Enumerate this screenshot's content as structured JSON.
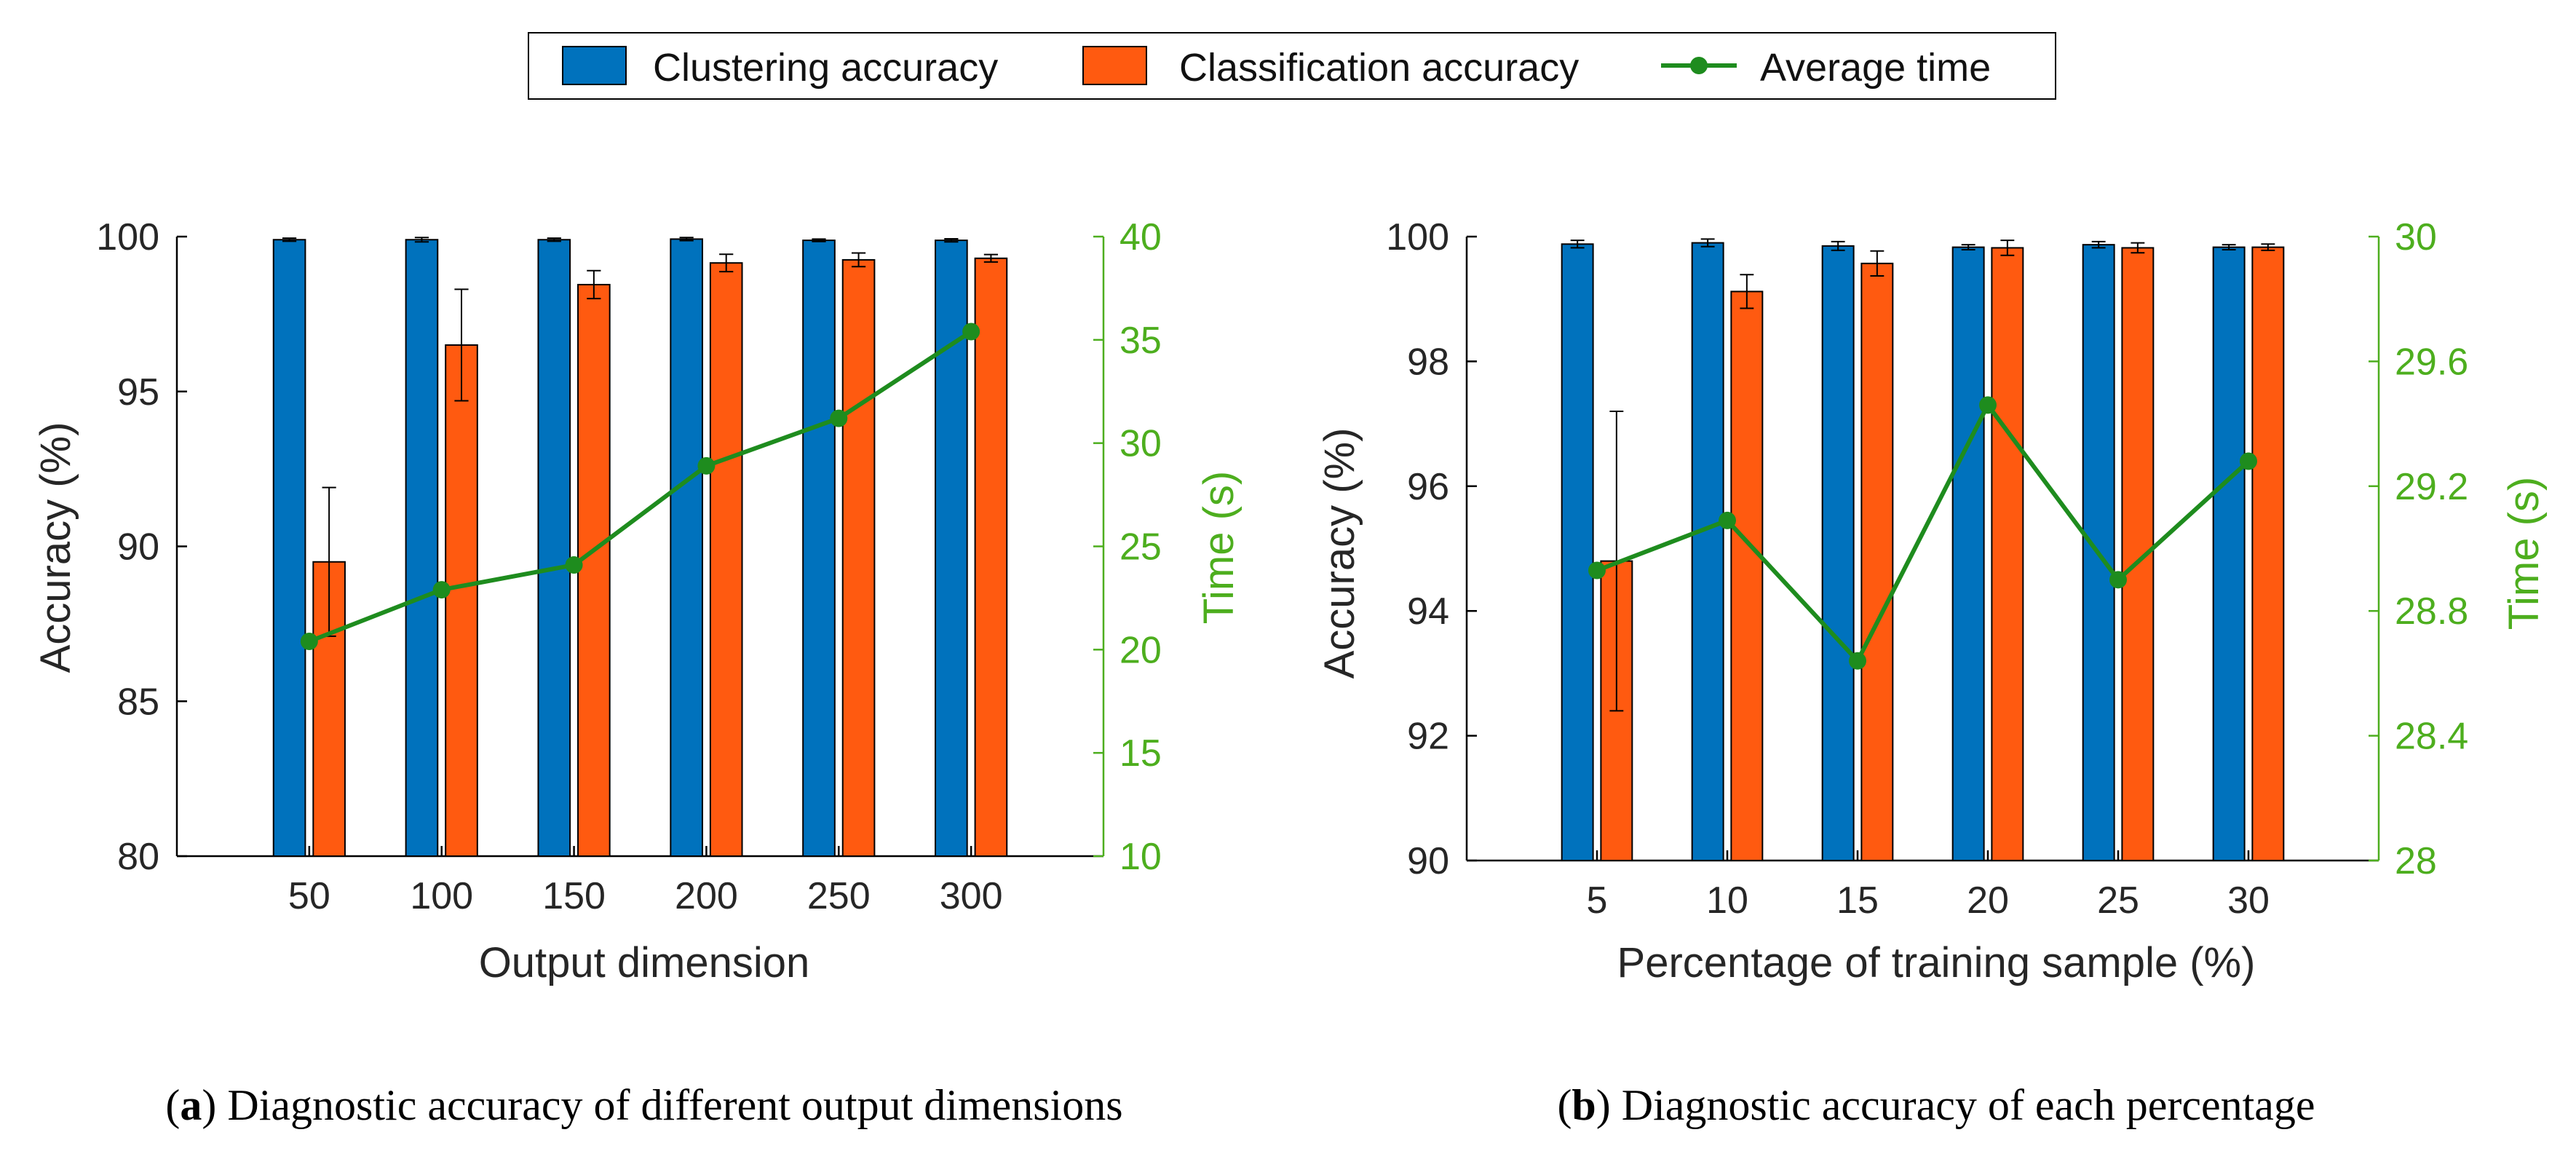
{
  "legend": {
    "items": [
      {
        "label": "Clustering accuracy",
        "kind": "bar",
        "color": "#0072BD"
      },
      {
        "label": "Classification accuracy",
        "kind": "bar",
        "color": "#FF5A10"
      },
      {
        "label": "Average time",
        "kind": "line",
        "color": "#1E8C1E"
      }
    ]
  },
  "chart_data": [
    {
      "type": "bar",
      "panel": "a",
      "categories": [
        "50",
        "100",
        "150",
        "200",
        "250",
        "300"
      ],
      "xlabel": "Output dimension",
      "ylabel": "Accuracy (%)",
      "ylabel_right": "Time (s)",
      "ylim": [
        80,
        100
      ],
      "yticks": [
        80,
        85,
        90,
        95,
        100
      ],
      "ylim_right": [
        10,
        40
      ],
      "yticks_right": [
        10,
        15,
        20,
        25,
        30,
        35,
        40
      ],
      "series": [
        {
          "name": "Clustering accuracy",
          "axis": "left",
          "values": [
            99.9,
            99.9,
            99.9,
            99.92,
            99.88,
            99.88
          ],
          "errors": [
            0.05,
            0.07,
            0.05,
            0.05,
            0.04,
            0.05
          ]
        },
        {
          "name": "Classification accuracy",
          "axis": "left",
          "values": [
            89.5,
            96.5,
            98.45,
            99.15,
            99.25,
            99.3
          ],
          "errors": [
            2.4,
            1.8,
            0.45,
            0.28,
            0.22,
            0.12
          ]
        },
        {
          "name": "Average time",
          "axis": "right",
          "type": "line",
          "values": [
            20.4,
            22.9,
            24.1,
            28.9,
            31.2,
            35.4
          ]
        }
      ],
      "caption_label": "a",
      "caption_text": "Diagnostic accuracy of different output dimensions"
    },
    {
      "type": "bar",
      "panel": "b",
      "categories": [
        "5",
        "10",
        "15",
        "20",
        "25",
        "30"
      ],
      "xlabel": "Percentage of training sample (%)",
      "ylabel": "Accuracy (%)",
      "ylabel_right": "Time (s)",
      "ylim": [
        90,
        100
      ],
      "yticks": [
        90,
        92,
        94,
        96,
        98,
        100
      ],
      "ylim_right": [
        28,
        30
      ],
      "yticks_right": [
        28,
        28.4,
        28.8,
        29.2,
        29.6,
        30
      ],
      "series": [
        {
          "name": "Clustering accuracy",
          "axis": "left",
          "values": [
            99.88,
            99.9,
            99.85,
            99.83,
            99.87,
            99.83
          ],
          "errors": [
            0.06,
            0.06,
            0.07,
            0.04,
            0.05,
            0.04
          ]
        },
        {
          "name": "Classification accuracy",
          "axis": "left",
          "values": [
            94.8,
            99.12,
            99.57,
            99.82,
            99.82,
            99.83
          ],
          "errors": [
            2.4,
            0.27,
            0.2,
            0.12,
            0.08,
            0.05
          ]
        },
        {
          "name": "Average time",
          "axis": "right",
          "type": "line",
          "values": [
            28.93,
            29.09,
            28.64,
            29.46,
            28.9,
            29.28
          ]
        }
      ],
      "caption_label": "b",
      "caption_text": "Diagnostic accuracy of each percentage"
    }
  ]
}
